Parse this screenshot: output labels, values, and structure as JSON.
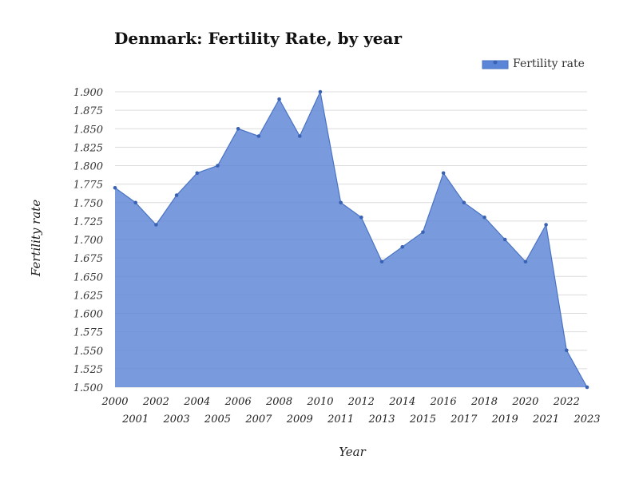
{
  "chart_data": {
    "type": "area",
    "title": "Denmark: Fertility Rate, by year",
    "xlabel": "Year",
    "ylabel": "Fertility rate",
    "ylim": [
      1.5,
      1.9
    ],
    "y_ticks": [
      "1.500",
      "1.525",
      "1.550",
      "1.575",
      "1.600",
      "1.625",
      "1.650",
      "1.675",
      "1.700",
      "1.725",
      "1.750",
      "1.775",
      "1.800",
      "1.825",
      "1.850",
      "1.875",
      "1.900"
    ],
    "legend_position": "top-right",
    "grid": true,
    "categories": [
      "2000",
      "2001",
      "2002",
      "2003",
      "2004",
      "2005",
      "2006",
      "2007",
      "2008",
      "2009",
      "2010",
      "2011",
      "2012",
      "2013",
      "2014",
      "2015",
      "2016",
      "2017",
      "2018",
      "2019",
      "2020",
      "2021",
      "2022",
      "2023"
    ],
    "series": [
      {
        "name": "Fertility rate",
        "color": "#5b85d6",
        "values": [
          1.77,
          1.75,
          1.72,
          1.76,
          1.79,
          1.8,
          1.85,
          1.84,
          1.89,
          1.84,
          1.9,
          1.75,
          1.73,
          1.67,
          1.69,
          1.71,
          1.79,
          1.75,
          1.73,
          1.7,
          1.67,
          1.72,
          1.55,
          1.5
        ]
      }
    ]
  }
}
